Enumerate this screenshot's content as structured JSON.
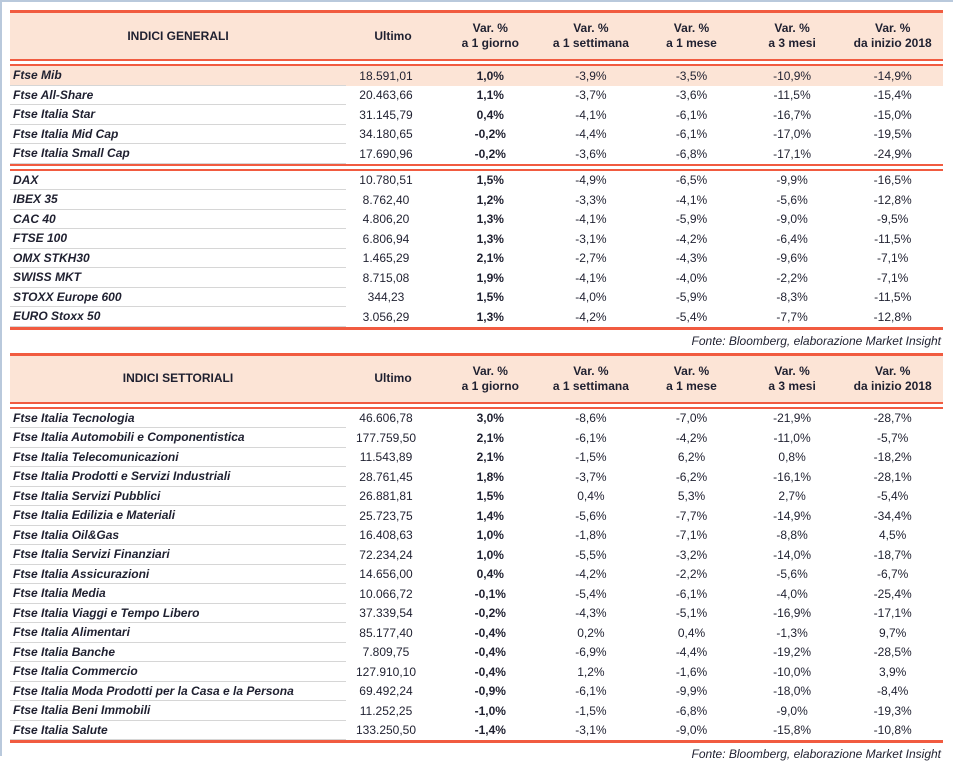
{
  "source_note": "Fonte: Bloomberg, elaborazione Market Insight",
  "colors": {
    "accent_red": "#f15b40",
    "header_peach": "#fce4d6",
    "row_line_gray": "#d6d6d6",
    "frame_blue": "#b9c9dc",
    "text_dark": "#1f2030"
  },
  "tables": [
    {
      "title": "INDICI GENERALI",
      "ultimo_label": "Ultimo",
      "var_headers": [
        {
          "line1": "Var. %",
          "line2": "a 1 giorno"
        },
        {
          "line1": "Var. %",
          "line2": "a 1 settimana"
        },
        {
          "line1": "Var. %",
          "line2": "a 1 mese"
        },
        {
          "line1": "Var. %",
          "line2": "a 3 mesi"
        },
        {
          "line1": "Var. %",
          "line2": "da inizio 2018"
        }
      ],
      "groups": [
        {
          "rows": [
            {
              "name": "Ftse Mib",
              "ultimo": "18.591,01",
              "vars": [
                "1,0%",
                "-3,9%",
                "-3,5%",
                "-10,9%",
                "-14,9%"
              ],
              "highlight": true
            },
            {
              "name": "Ftse All-Share",
              "ultimo": "20.463,66",
              "vars": [
                "1,1%",
                "-3,7%",
                "-3,6%",
                "-11,5%",
                "-15,4%"
              ]
            },
            {
              "name": "Ftse Italia Star",
              "ultimo": "31.145,79",
              "vars": [
                "0,4%",
                "-4,1%",
                "-6,1%",
                "-16,7%",
                "-15,0%"
              ]
            },
            {
              "name": "Ftse Italia Mid Cap",
              "ultimo": "34.180,65",
              "vars": [
                "-0,2%",
                "-4,4%",
                "-6,1%",
                "-17,0%",
                "-19,5%"
              ]
            },
            {
              "name": "Ftse Italia Small Cap",
              "ultimo": "17.690,96",
              "vars": [
                "-0,2%",
                "-3,6%",
                "-6,8%",
                "-17,1%",
                "-24,9%"
              ]
            }
          ]
        },
        {
          "rows": [
            {
              "name": "DAX",
              "ultimo": "10.780,51",
              "vars": [
                "1,5%",
                "-4,9%",
                "-6,5%",
                "-9,9%",
                "-16,5%"
              ]
            },
            {
              "name": "IBEX 35",
              "ultimo": "8.762,40",
              "vars": [
                "1,2%",
                "-3,3%",
                "-4,1%",
                "-5,6%",
                "-12,8%"
              ]
            },
            {
              "name": "CAC 40",
              "ultimo": "4.806,20",
              "vars": [
                "1,3%",
                "-4,1%",
                "-5,9%",
                "-9,0%",
                "-9,5%"
              ]
            },
            {
              "name": "FTSE 100",
              "ultimo": "6.806,94",
              "vars": [
                "1,3%",
                "-3,1%",
                "-4,2%",
                "-6,4%",
                "-11,5%"
              ]
            },
            {
              "name": "OMX STKH30",
              "ultimo": "1.465,29",
              "vars": [
                "2,1%",
                "-2,7%",
                "-4,3%",
                "-9,6%",
                "-7,1%"
              ]
            },
            {
              "name": "SWISS MKT",
              "ultimo": "8.715,08",
              "vars": [
                "1,9%",
                "-4,1%",
                "-4,0%",
                "-2,2%",
                "-7,1%"
              ]
            },
            {
              "name": "STOXX Europe 600",
              "ultimo": "344,23",
              "vars": [
                "1,5%",
                "-4,0%",
                "-5,9%",
                "-8,3%",
                "-11,5%"
              ]
            },
            {
              "name": "EURO Stoxx 50",
              "ultimo": "3.056,29",
              "vars": [
                "1,3%",
                "-4,2%",
                "-5,4%",
                "-7,7%",
                "-12,8%"
              ]
            }
          ]
        }
      ]
    },
    {
      "title": "INDICI SETTORIALI",
      "ultimo_label": "Ultimo",
      "var_headers": [
        {
          "line1": "Var. %",
          "line2": "a 1 giorno"
        },
        {
          "line1": "Var. %",
          "line2": "a 1 settimana"
        },
        {
          "line1": "Var. %",
          "line2": "a 1 mese"
        },
        {
          "line1": "Var. %",
          "line2": "a 3 mesi"
        },
        {
          "line1": "Var. %",
          "line2": "da inizio 2018"
        }
      ],
      "groups": [
        {
          "rows": [
            {
              "name": "Ftse Italia Tecnologia",
              "ultimo": "46.606,78",
              "vars": [
                "3,0%",
                "-8,6%",
                "-7,0%",
                "-21,9%",
                "-28,7%"
              ]
            },
            {
              "name": "Ftse Italia Automobili e Componentistica",
              "ultimo": "177.759,50",
              "vars": [
                "2,1%",
                "-6,1%",
                "-4,2%",
                "-11,0%",
                "-5,7%"
              ]
            },
            {
              "name": "Ftse Italia Telecomunicazioni",
              "ultimo": "11.543,89",
              "vars": [
                "2,1%",
                "-1,5%",
                "6,2%",
                "0,8%",
                "-18,2%"
              ]
            },
            {
              "name": "Ftse Italia Prodotti e Servizi Industriali",
              "ultimo": "28.761,45",
              "vars": [
                "1,8%",
                "-3,7%",
                "-6,2%",
                "-16,1%",
                "-28,1%"
              ]
            },
            {
              "name": "Ftse Italia Servizi Pubblici",
              "ultimo": "26.881,81",
              "vars": [
                "1,5%",
                "0,4%",
                "5,3%",
                "2,7%",
                "-5,4%"
              ]
            },
            {
              "name": "Ftse Italia Edilizia e Materiali",
              "ultimo": "25.723,75",
              "vars": [
                "1,4%",
                "-5,6%",
                "-7,7%",
                "-14,9%",
                "-34,4%"
              ]
            },
            {
              "name": "Ftse Italia Oil&Gas",
              "ultimo": "16.408,63",
              "vars": [
                "1,0%",
                "-1,8%",
                "-7,1%",
                "-8,8%",
                "4,5%"
              ]
            },
            {
              "name": "Ftse Italia Servizi Finanziari",
              "ultimo": "72.234,24",
              "vars": [
                "1,0%",
                "-5,5%",
                "-3,2%",
                "-14,0%",
                "-18,7%"
              ]
            },
            {
              "name": "Ftse Italia Assicurazioni",
              "ultimo": "14.656,00",
              "vars": [
                "0,4%",
                "-4,2%",
                "-2,2%",
                "-5,6%",
                "-6,7%"
              ]
            },
            {
              "name": "Ftse Italia Media",
              "ultimo": "10.066,72",
              "vars": [
                "-0,1%",
                "-5,4%",
                "-6,1%",
                "-4,0%",
                "-25,4%"
              ]
            },
            {
              "name": "Ftse Italia Viaggi e Tempo Libero",
              "ultimo": "37.339,54",
              "vars": [
                "-0,2%",
                "-4,3%",
                "-5,1%",
                "-16,9%",
                "-17,1%"
              ]
            },
            {
              "name": "Ftse Italia Alimentari",
              "ultimo": "85.177,40",
              "vars": [
                "-0,4%",
                "0,2%",
                "0,4%",
                "-1,3%",
                "9,7%"
              ]
            },
            {
              "name": "Ftse Italia Banche",
              "ultimo": "7.809,75",
              "vars": [
                "-0,4%",
                "-6,9%",
                "-4,4%",
                "-19,2%",
                "-28,5%"
              ]
            },
            {
              "name": "Ftse Italia Commercio",
              "ultimo": "127.910,10",
              "vars": [
                "-0,4%",
                "1,2%",
                "-1,6%",
                "-10,0%",
                "3,9%"
              ]
            },
            {
              "name": "Ftse Italia Moda Prodotti per la Casa e la Persona",
              "ultimo": "69.492,24",
              "vars": [
                "-0,9%",
                "-6,1%",
                "-9,9%",
                "-18,0%",
                "-8,4%"
              ]
            },
            {
              "name": "Ftse Italia Beni Immobili",
              "ultimo": "11.252,25",
              "vars": [
                "-1,0%",
                "-1,5%",
                "-6,8%",
                "-9,0%",
                "-19,3%"
              ]
            },
            {
              "name": "Ftse Italia Salute",
              "ultimo": "133.250,50",
              "vars": [
                "-1,4%",
                "-3,1%",
                "-9,0%",
                "-15,8%",
                "-10,8%"
              ]
            }
          ]
        }
      ]
    }
  ]
}
